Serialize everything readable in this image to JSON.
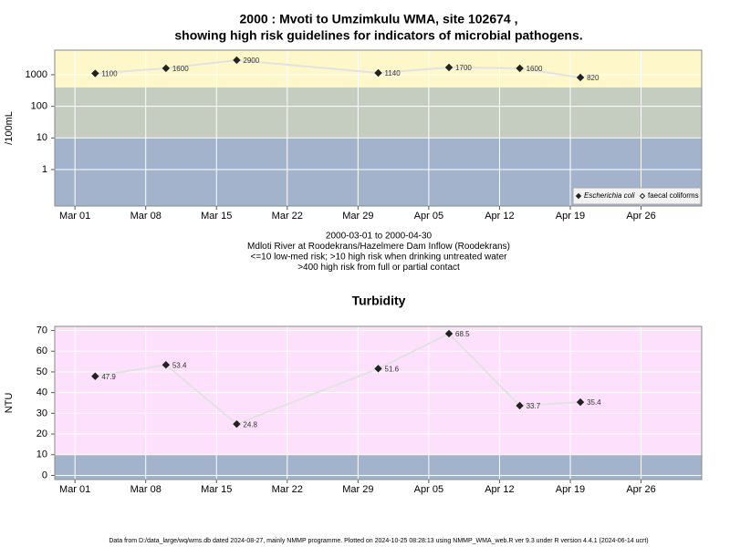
{
  "chart_data": [
    {
      "type": "line",
      "title": "2000 : Mvoti to Umzimkulu WMA, site 102674 ,",
      "subtitle": "showing high risk guidelines for indicators of microbial pathogens.",
      "annotations": [
        "2000-03-01 to 2000-04-30",
        "Mdloti River at Roodekrans/Hazelmere Dam Inflow (Roodekrans)",
        "<=10 low-med risk; >10 high risk when drinking untreated water",
        ">400 high risk from full or partial contact"
      ],
      "y_label": "/100mL",
      "log_scale": true,
      "x": [
        "Mar 03",
        "Mar 10",
        "Mar 17",
        "Mar 31",
        "Apr 07",
        "Apr 14",
        "Apr 20"
      ],
      "xlim": [
        "Feb 28",
        "May 02"
      ],
      "xticks": [
        "Mar 01",
        "Mar 08",
        "Mar 15",
        "Mar 22",
        "Mar 29",
        "Apr 05",
        "Apr 12",
        "Apr 19",
        "Apr 26"
      ],
      "ylim": [
        0.07,
        6000
      ],
      "yticks": [
        1,
        10,
        100,
        1000
      ],
      "grid": true,
      "bands": {
        "thresholds": [
          10,
          400
        ],
        "colors": [
          "#a3b3cc",
          "#c5ccc0",
          "#fef7c9"
        ]
      },
      "legend": "bottom-right",
      "series": [
        {
          "name": "Escherichia coli",
          "color": "#222222",
          "marker": "filled",
          "line_color": "#e2e2e2",
          "values": [
            1100,
            1600,
            2900,
            1140,
            1700,
            1600,
            820
          ]
        },
        {
          "name": "faecal coliforms",
          "color": "#222222",
          "marker": "open",
          "line_color": "#e2e2e2",
          "values": [
            null,
            null,
            null,
            null,
            null,
            null,
            null
          ]
        }
      ]
    },
    {
      "type": "line",
      "title": "Turbidity",
      "y_label": "NTU",
      "log_scale": false,
      "x": [
        "Mar 03",
        "Mar 10",
        "Mar 17",
        "Mar 31",
        "Apr 07",
        "Apr 14",
        "Apr 20"
      ],
      "xlim": [
        "Feb 28",
        "May 02"
      ],
      "xticks": [
        "Mar 01",
        "Mar 08",
        "Mar 15",
        "Mar 22",
        "Mar 29",
        "Apr 05",
        "Apr 12",
        "Apr 19",
        "Apr 26"
      ],
      "ylim": [
        -2,
        72
      ],
      "yticks": [
        0,
        10,
        20,
        30,
        40,
        50,
        60,
        70
      ],
      "grid": true,
      "bands": {
        "thresholds": [
          10
        ],
        "colors": [
          "#a3b3cc",
          "#fde0fb"
        ]
      },
      "series": [
        {
          "name": "Turbidity",
          "color": "#222222",
          "marker": "filled",
          "line_color": "#e2e2e2",
          "values": [
            47.9,
            53.4,
            24.8,
            51.6,
            68.5,
            33.7,
            35.4
          ]
        }
      ]
    }
  ],
  "footer": "Data from D:/data_large/wq/wms.db dated 2024-08-27, mainly NMMP programme. Plotted on 2024-10-25 08:28:13 using NMMP_WMA_web.R ver 9.3 under R version 4.4.1 (2024-06-14 ucrt)"
}
